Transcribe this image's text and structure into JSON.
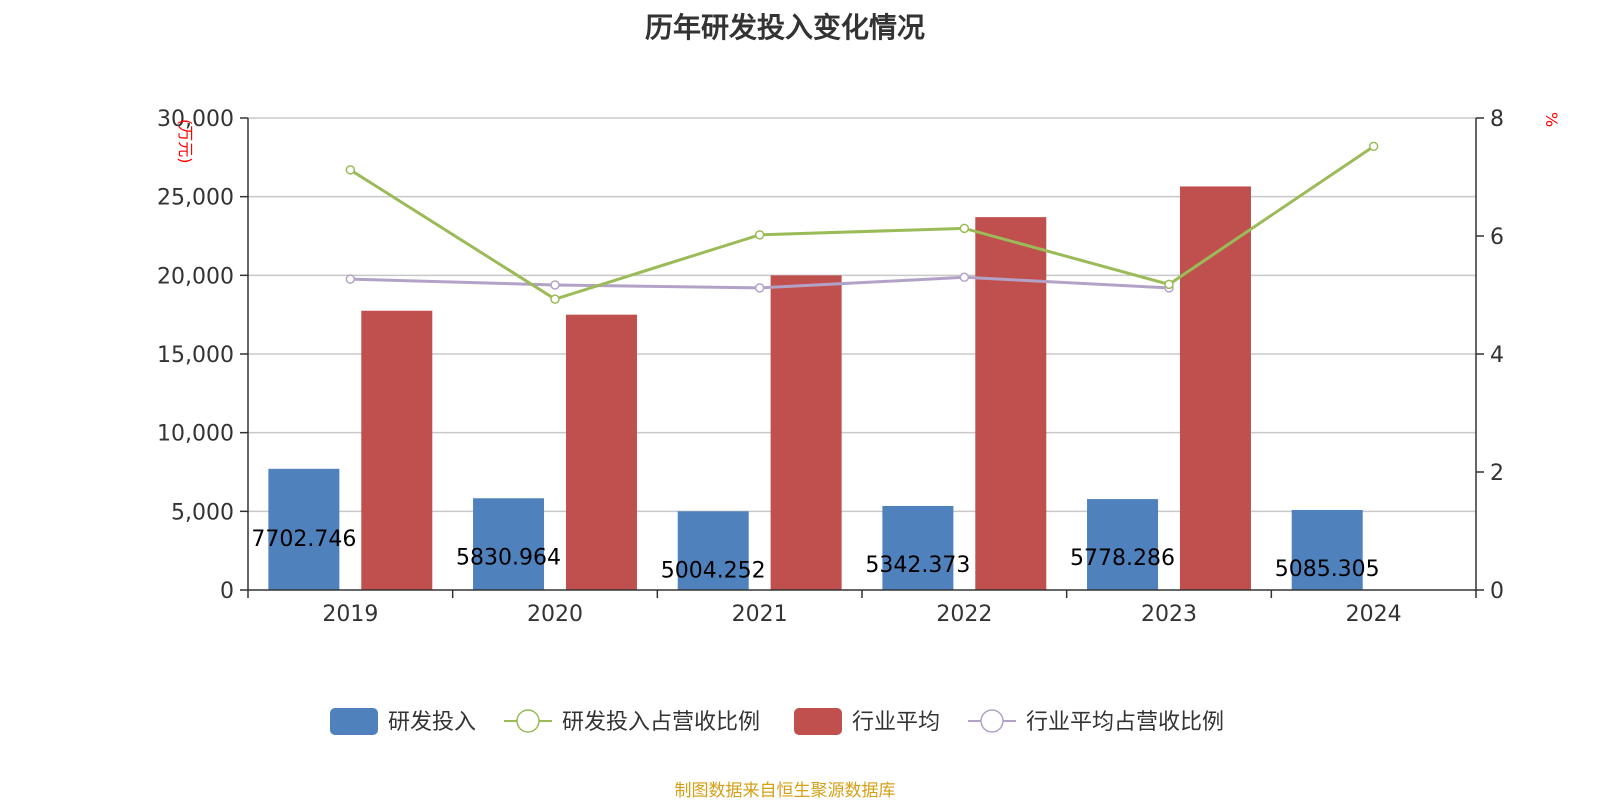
{
  "chart_data": {
    "type": "bar",
    "title": "历年研发投入变化情况",
    "categories": [
      "2019",
      "2020",
      "2021",
      "2022",
      "2023",
      "2024"
    ],
    "y_left": {
      "unit": "万元",
      "ylim": [
        0,
        30000
      ],
      "ticks": [
        "0",
        "5,000",
        "10,000",
        "15,000",
        "20,000",
        "25,000",
        "30,000"
      ],
      "tick_values": [
        0,
        5000,
        10000,
        15000,
        20000,
        25000,
        30000
      ]
    },
    "y_right": {
      "unit": "%",
      "ylim": [
        0,
        8
      ],
      "ticks": [
        "0",
        "2",
        "4",
        "6",
        "8"
      ],
      "tick_values": [
        0,
        2,
        4,
        6,
        8
      ]
    },
    "series": [
      {
        "name": "研发投入",
        "type": "bar",
        "axis": "left",
        "color": "#4f81bd",
        "values": [
          7702.746,
          5830.964,
          5004.252,
          5342.373,
          5778.286,
          5085.305
        ],
        "labels": [
          "7702.746",
          "5830.964",
          "5004.252",
          "5342.373",
          "5778.286",
          "5085.305"
        ]
      },
      {
        "name": "研发投入占营收比例",
        "type": "line",
        "axis": "right",
        "color": "#9bbb59",
        "values": [
          7.12,
          4.93,
          6.02,
          6.13,
          5.18,
          7.52
        ]
      },
      {
        "name": "行业平均",
        "type": "bar",
        "axis": "left",
        "color": "#c0504d",
        "values": [
          17750,
          17500,
          20000,
          23700,
          25650,
          null
        ]
      },
      {
        "name": "行业平均占营收比例",
        "type": "line",
        "axis": "right",
        "color": "#b3a2c7",
        "values": [
          5.27,
          5.17,
          5.12,
          5.3,
          5.12,
          null
        ]
      }
    ],
    "legend_position": "bottom",
    "grid": true
  },
  "source_note": "制图数据来自恒生聚源数据库"
}
